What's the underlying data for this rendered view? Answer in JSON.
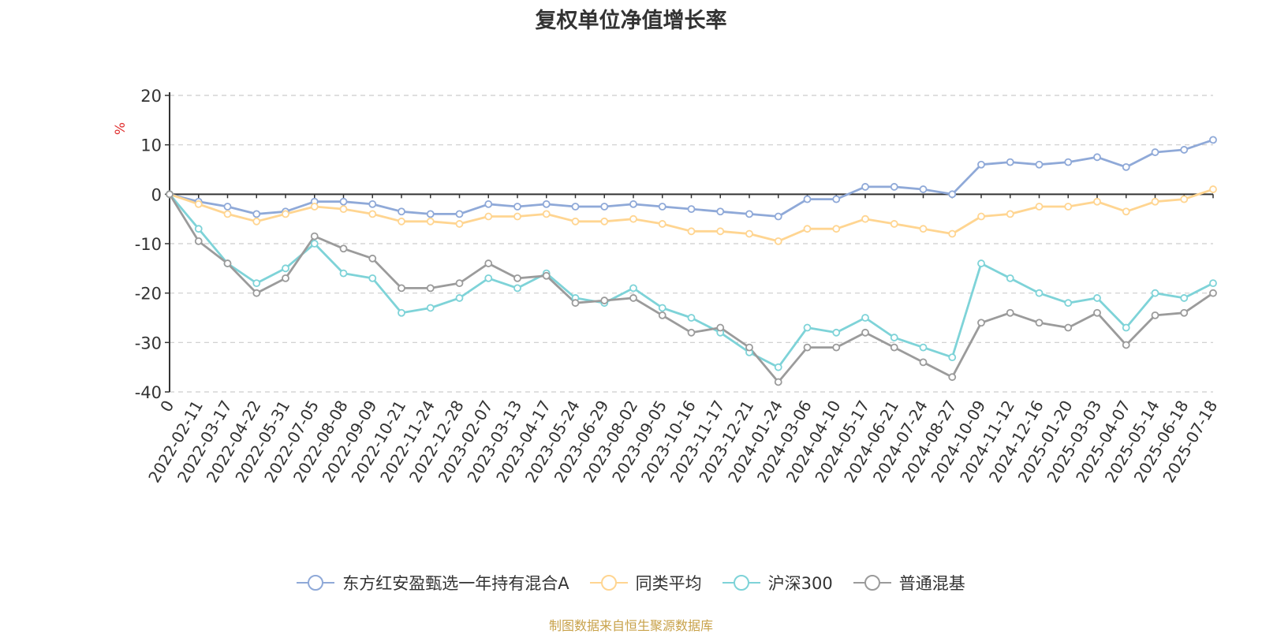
{
  "chart_data": {
    "type": "line",
    "title": "复权单位净值增长率",
    "ylabel": "%",
    "ylim": [
      -40,
      20
    ],
    "yticks": [
      20,
      10,
      0,
      -10,
      -20,
      -30,
      -40
    ],
    "x_tick_labels": [
      "0",
      "2022-02-11",
      "2022-03-17",
      "2022-04-22",
      "2022-05-31",
      "2022-07-05",
      "2022-08-08",
      "2022-09-09",
      "2022-10-21",
      "2022-11-24",
      "2022-12-28",
      "2023-02-07",
      "2023-03-13",
      "2023-04-17",
      "2023-05-24",
      "2023-06-29",
      "2023-08-02",
      "2023-09-05",
      "2023-10-16",
      "2023-11-17",
      "2023-12-21",
      "2024-01-24",
      "2024-03-06",
      "2024-04-10",
      "2024-05-17",
      "2024-06-21",
      "2024-07-24",
      "2024-08-27",
      "2024-10-09",
      "2024-11-12",
      "2024-12-16",
      "2025-01-20",
      "2025-03-03",
      "2025-04-07",
      "2025-05-14",
      "2025-06-18",
      "2025-07-18"
    ],
    "grid": true,
    "legend_position": "bottom",
    "series": [
      {
        "name": "东方红安盈甄选一年持有混合A",
        "color": "#8fa9d8",
        "values": [
          0,
          -1.5,
          -2.5,
          -4,
          -3.5,
          -1.5,
          -1.5,
          -2,
          -3.5,
          -4,
          -4,
          -2,
          -2.5,
          -2,
          -2.5,
          -2.5,
          -2,
          -2.5,
          -3,
          -3.5,
          -4,
          -4.5,
          -1,
          -1,
          1.5,
          1.5,
          1,
          0,
          6,
          6.5,
          6,
          6.5,
          7.5,
          5.5,
          8.5,
          9,
          11
        ]
      },
      {
        "name": "同类平均",
        "color": "#ffd591",
        "values": [
          0,
          -2,
          -4,
          -5.5,
          -4,
          -2.5,
          -3,
          -4,
          -5.5,
          -5.5,
          -6,
          -4.5,
          -4.5,
          -4,
          -5.5,
          -5.5,
          -5,
          -6,
          -7.5,
          -7.5,
          -8,
          -9.5,
          -7,
          -7,
          -5,
          -6,
          -7,
          -8,
          -4.5,
          -4,
          -2.5,
          -2.5,
          -1.5,
          -3.5,
          -1.5,
          -1,
          1
        ]
      },
      {
        "name": "沪深300",
        "color": "#7ed3d8",
        "values": [
          0,
          -7,
          -14,
          -18,
          -15,
          -10,
          -16,
          -17,
          -24,
          -23,
          -21,
          -17,
          -19,
          -16,
          -21,
          -22,
          -19,
          -23,
          -25,
          -28,
          -32,
          -35,
          -27,
          -28,
          -25,
          -29,
          -31,
          -33,
          -14,
          -17,
          -20,
          -22,
          -21,
          -27,
          -20,
          -21,
          -18
        ]
      },
      {
        "name": "普通混基",
        "color": "#9b9b9b",
        "values": [
          0,
          -9.5,
          -14,
          -20,
          -17,
          -8.5,
          -11,
          -13,
          -19,
          -19,
          -18,
          -14,
          -17,
          -16.5,
          -22,
          -21.5,
          -21,
          -24.5,
          -28,
          -27,
          -31,
          -38,
          -31,
          -31,
          -28,
          -31,
          -34,
          -37,
          -26,
          -24,
          -26,
          -27,
          -24,
          -30.5,
          -24.5,
          -24,
          -20
        ]
      }
    ]
  },
  "footer": {
    "source": "制图数据来自恒生聚源数据库"
  }
}
